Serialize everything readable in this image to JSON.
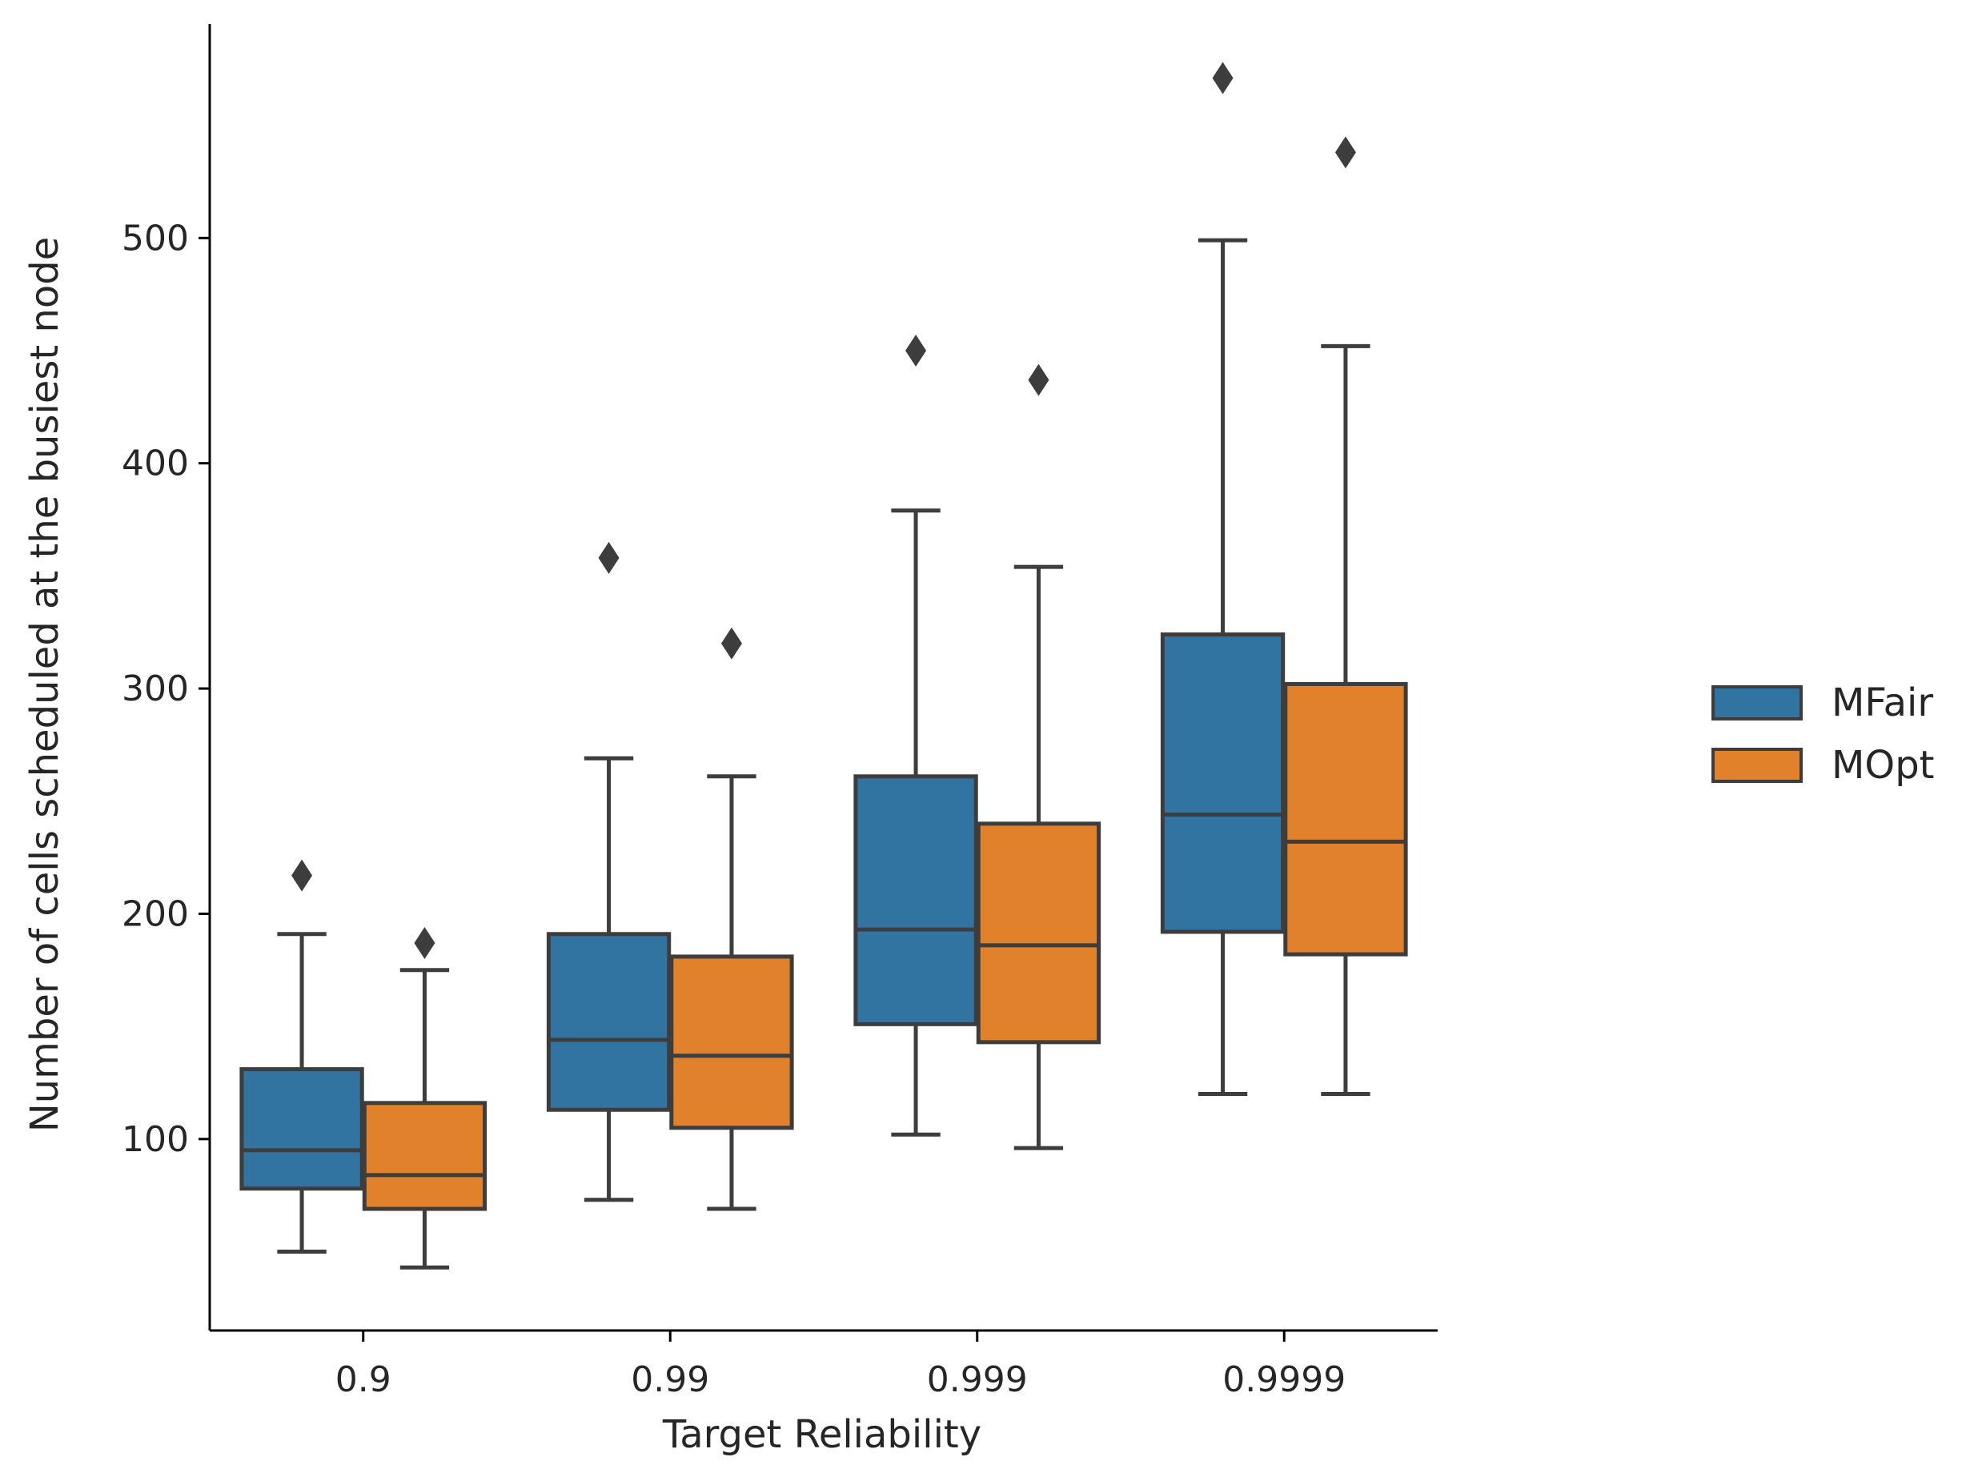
{
  "chart_data": {
    "type": "box",
    "title": "",
    "xlabel": "Target Reliability",
    "ylabel": "Number of cells scheduled at the busiest node",
    "ylim": [
      15,
      595
    ],
    "yticks": [
      100,
      200,
      300,
      400,
      500
    ],
    "categories": [
      "0.9",
      "0.99",
      "0.999",
      "0.9999"
    ],
    "legend": {
      "position": "right"
    },
    "series": [
      {
        "name": "MFair",
        "color": "#3274a1",
        "boxes": [
          {
            "whisker_low": 50,
            "q1": 78,
            "median": 95,
            "q3": 131,
            "whisker_high": 191,
            "outliers": [
              217
            ]
          },
          {
            "whisker_low": 73,
            "q1": 113,
            "median": 144,
            "q3": 191,
            "whisker_high": 269,
            "outliers": [
              358
            ]
          },
          {
            "whisker_low": 102,
            "q1": 151,
            "median": 193,
            "q3": 261,
            "whisker_high": 379,
            "outliers": [
              450
            ]
          },
          {
            "whisker_low": 120,
            "q1": 192,
            "median": 244,
            "q3": 324,
            "whisker_high": 499,
            "outliers": [
              571
            ]
          }
        ]
      },
      {
        "name": "MOpt",
        "color": "#e1812c",
        "boxes": [
          {
            "whisker_low": 43,
            "q1": 69,
            "median": 84,
            "q3": 116,
            "whisker_high": 175,
            "outliers": [
              187
            ]
          },
          {
            "whisker_low": 69,
            "q1": 105,
            "median": 137,
            "q3": 181,
            "whisker_high": 261,
            "outliers": [
              320
            ]
          },
          {
            "whisker_low": 96,
            "q1": 143,
            "median": 186,
            "q3": 240,
            "whisker_high": 354,
            "outliers": [
              437
            ]
          },
          {
            "whisker_low": 120,
            "q1": 182,
            "median": 232,
            "q3": 302,
            "whisker_high": 452,
            "outliers": [
              538
            ]
          }
        ]
      }
    ]
  }
}
